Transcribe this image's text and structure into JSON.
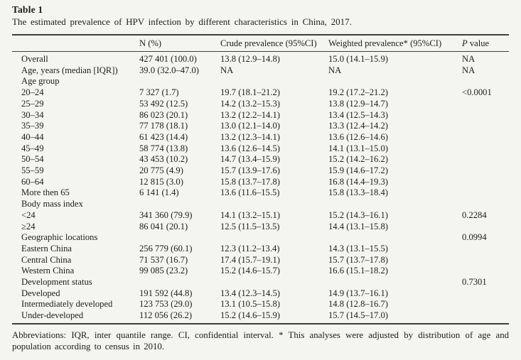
{
  "table": {
    "label": "Table 1",
    "caption": "The estimated prevalence of HPV infection by different characteristics in China, 2017.",
    "columns": {
      "c1": "",
      "c2": "N (%)",
      "c3": "Crude prevalence (95%CI)",
      "c4": "Weighted prevalence* (95%CI)",
      "c5_italic": "P",
      "c5_rest": " value"
    },
    "rows": [
      {
        "label": "Overall",
        "n": "427 401 (100.0)",
        "crude": "13.8 (12.9–14.8)",
        "weighted": "15.0 (14.1–15.9)",
        "p": "NA"
      },
      {
        "label": "Age, years (median [IQR])",
        "n": "39.0 (32.0–47.0)",
        "crude": "NA",
        "weighted": "NA",
        "p": "NA"
      },
      {
        "label": "Age group",
        "n": "",
        "crude": "",
        "weighted": "",
        "p": ""
      },
      {
        "label": "20–24",
        "n": "7 327 (1.7)",
        "crude": "19.7 (18.1–21.2)",
        "weighted": "19.2 (17.2–21.2)",
        "p": "<0.0001"
      },
      {
        "label": "25–29",
        "n": "53 492 (12.5)",
        "crude": "14.2 (13.2–15.3)",
        "weighted": "13.8 (12.9–14.7)",
        "p": ""
      },
      {
        "label": "30–34",
        "n": "86 023 (20.1)",
        "crude": "13.2 (12.2–14.1)",
        "weighted": "13.4 (12.5–14.3)",
        "p": ""
      },
      {
        "label": "35–39",
        "n": "77 178 (18.1)",
        "crude": "13.0 (12.1–14.0)",
        "weighted": "13.3 (12.4–14.2)",
        "p": ""
      },
      {
        "label": "40–44",
        "n": "61 423 (14.4)",
        "crude": "13.2 (12.3–14.1)",
        "weighted": "13.6 (12.6–14.6)",
        "p": ""
      },
      {
        "label": "45–49",
        "n": "58 774 (13.8)",
        "crude": "13.6 (12.6–14.5)",
        "weighted": "14.1 (13.1–15.0)",
        "p": ""
      },
      {
        "label": "50–54",
        "n": "43 453 (10.2)",
        "crude": "14.7 (13.4–15.9)",
        "weighted": "15.2 (14.2–16.2)",
        "p": ""
      },
      {
        "label": "55–59",
        "n": "20 775 (4.9)",
        "crude": "15.7 (13.9–17.6)",
        "weighted": "15.9 (14.6–17.2)",
        "p": ""
      },
      {
        "label": "60–64",
        "n": "12 815 (3.0)",
        "crude": "15.8 (13.7–17.8)",
        "weighted": "16.8 (14.4–19.3)",
        "p": ""
      },
      {
        "label": "More then 65",
        "n": "6 141 (1.4)",
        "crude": "13.6 (11.6–15.5)",
        "weighted": "15.8 (13.3–18.4)",
        "p": ""
      },
      {
        "label": "Body mass index",
        "n": "",
        "crude": "",
        "weighted": "",
        "p": ""
      },
      {
        "label": "<24",
        "n": "341 360 (79.9)",
        "crude": "14.1 (13.2–15.1)",
        "weighted": "15.2 (14.3–16.1)",
        "p": "0.2284"
      },
      {
        "label": "≥24",
        "n": "86 041 (20.1)",
        "crude": "12.5 (11.5–13.5)",
        "weighted": "14.4 (13.1–15.8)",
        "p": ""
      },
      {
        "label": "Geographic locations",
        "n": "",
        "crude": "",
        "weighted": "",
        "p": "0.0994"
      },
      {
        "label": "Eastern China",
        "n": "256 779 (60.1)",
        "crude": "12.3 (11.2–13.4)",
        "weighted": "14.3 (13.1–15.5)",
        "p": ""
      },
      {
        "label": "Central China",
        "n": "71 537 (16.7)",
        "crude": "17.4 (15.7–19.1)",
        "weighted": "15.7 (13.7–17.8)",
        "p": ""
      },
      {
        "label": "Western China",
        "n": "99 085 (23.2)",
        "crude": "15.2 (14.6–15.7)",
        "weighted": "16.6 (15.1–18.2)",
        "p": ""
      },
      {
        "label": "Development status",
        "n": "",
        "crude": "",
        "weighted": "",
        "p": "0.7301"
      },
      {
        "label": "Developed",
        "n": "191 592 (44.8)",
        "crude": "13.4 (12.3–14.5)",
        "weighted": "14.9 (13.7–16.1)",
        "p": ""
      },
      {
        "label": "Intermediately developed",
        "n": "123 753 (29.0)",
        "crude": "13.1 (10.5–15.8)",
        "weighted": "14.8 (12.8–16.7)",
        "p": ""
      },
      {
        "label": "Under-developed",
        "n": "112 056 (26.2)",
        "crude": "15.2 (14.6–15.9)",
        "weighted": "15.7 (14.5–17.0)",
        "p": ""
      }
    ],
    "footnote": "Abbreviations: IQR, inter quantile range. CI, confidential interval. * This analyses were adjusted by distribution of age and population according to census in 2010."
  }
}
